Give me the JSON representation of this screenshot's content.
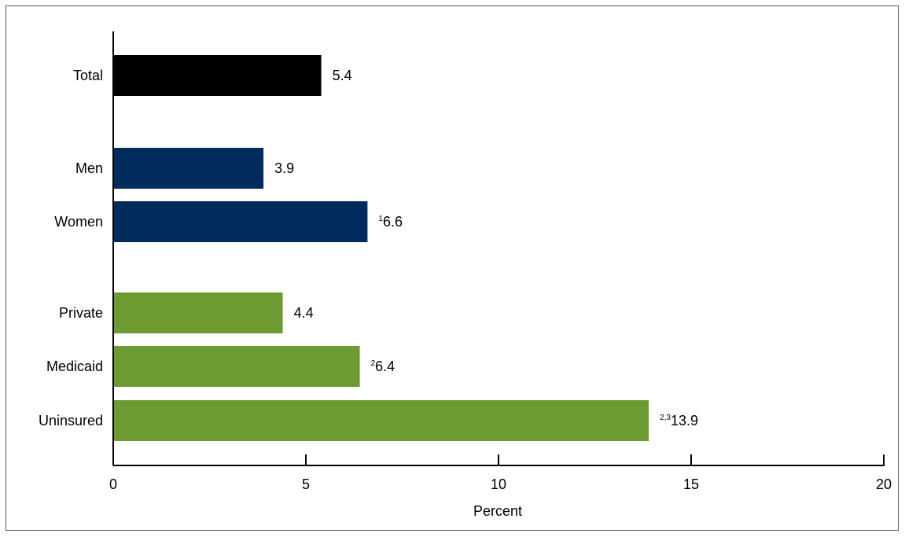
{
  "chart_data": {
    "type": "bar",
    "orientation": "horizontal",
    "categories": [
      "Total",
      "Men",
      "Women",
      "Private",
      "Medicaid",
      "Uninsured"
    ],
    "values": [
      5.4,
      3.9,
      6.6,
      4.4,
      6.4,
      13.9
    ],
    "value_labels": [
      "5.4",
      "3.9",
      "6.6",
      "4.4",
      "6.4",
      "13.9"
    ],
    "footnote_markers": [
      "",
      "",
      "1",
      "",
      "2",
      "2,3"
    ],
    "groups": [
      {
        "members": [
          "Total"
        ],
        "color": "#000000"
      },
      {
        "members": [
          "Men",
          "Women"
        ],
        "color": "#002b5c"
      },
      {
        "members": [
          "Private",
          "Medicaid",
          "Uninsured"
        ],
        "color": "#6d9b32"
      }
    ],
    "xlabel": "Percent",
    "ylabel": "",
    "title": "",
    "xlim": [
      0,
      20
    ],
    "xticks": [
      0,
      5,
      10,
      15,
      20
    ],
    "xtick_labels": [
      "0",
      "5",
      "10",
      "15",
      "20"
    ],
    "grid": false,
    "legend": "none"
  }
}
